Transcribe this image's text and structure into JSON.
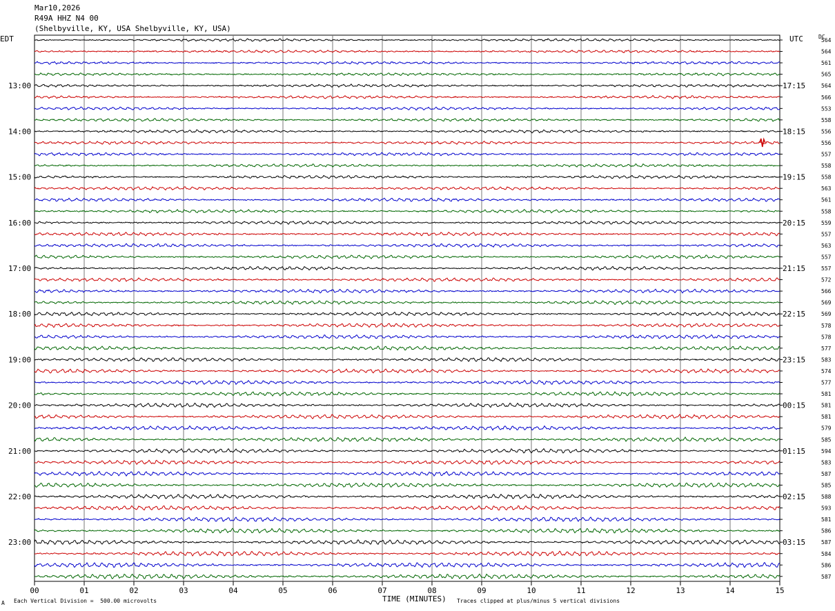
{
  "header": {
    "date": "Mar10,2026",
    "station": "R49A HHZ N4 00",
    "location": "(Shelbyville, KY, USA Shelbyville, KY, USA)"
  },
  "left_timezone": "EDT",
  "right_timezone": "UTC",
  "dc_label": "DC",
  "footer": {
    "scale_note": "Each Vertical Division =  500.00 microvolts",
    "xlabel": "TIME (MINUTES)",
    "clip_note": "Traces clipped at plus/minus 5 vertical divisions",
    "corner_mark": "A"
  },
  "colors": {
    "trace_cycle": [
      "#000000",
      "#cc0000",
      "#0000cc",
      "#006600"
    ],
    "grid": "#000000"
  },
  "chart_data": {
    "type": "line",
    "xlabel": "TIME (MINUTES)",
    "xlim": [
      0,
      15
    ],
    "x_ticks": [
      "00",
      "01",
      "02",
      "03",
      "04",
      "05",
      "06",
      "07",
      "08",
      "09",
      "10",
      "11",
      "12",
      "13",
      "14",
      "15"
    ],
    "left_time_labels": [
      "13:00",
      "14:00",
      "15:00",
      "16:00",
      "17:00",
      "18:00",
      "19:00",
      "20:00",
      "21:00",
      "22:00",
      "23:00"
    ],
    "right_time_labels": [
      "17:15",
      "18:15",
      "19:15",
      "20:15",
      "21:15",
      "22:15",
      "23:15",
      "00:15",
      "01:15",
      "02:15",
      "03:15"
    ],
    "trace_dc_values": [
      "564",
      "564",
      "561",
      "565",
      "564",
      "566",
      "553",
      "558",
      "556",
      "556",
      "557",
      "558",
      "558",
      "563",
      "561",
      "558",
      "559",
      "557",
      "563",
      "557",
      "557",
      "572",
      "566",
      "569",
      "569",
      "578",
      "578",
      "577",
      "583",
      "574",
      "577",
      "581",
      "581",
      "581",
      "579",
      "585",
      "594",
      "583",
      "587",
      "585",
      "588",
      "593",
      "581",
      "586",
      "587",
      "584",
      "586",
      "587"
    ]
  }
}
